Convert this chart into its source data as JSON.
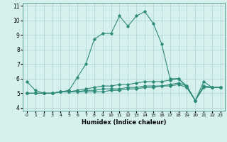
{
  "xlabel": "Humidex (Indice chaleur)",
  "x_values": [
    0,
    1,
    2,
    3,
    4,
    5,
    6,
    7,
    8,
    9,
    10,
    11,
    12,
    13,
    14,
    15,
    16,
    17,
    18,
    19,
    20,
    21,
    22,
    23
  ],
  "series1": [
    5.8,
    5.2,
    5.0,
    5.0,
    5.1,
    5.2,
    6.1,
    7.0,
    8.7,
    9.1,
    9.1,
    10.3,
    9.6,
    10.3,
    10.6,
    9.8,
    8.4,
    6.0,
    6.0,
    5.4,
    4.5,
    5.8,
    5.4,
    5.4
  ],
  "series2": [
    5.0,
    5.0,
    5.0,
    5.0,
    5.1,
    5.1,
    5.1,
    5.1,
    5.1,
    5.1,
    5.2,
    5.2,
    5.3,
    5.3,
    5.4,
    5.4,
    5.5,
    5.5,
    5.6,
    5.4,
    4.5,
    5.4,
    5.4,
    5.4
  ],
  "series3": [
    5.0,
    5.0,
    5.0,
    5.0,
    5.1,
    5.1,
    5.1,
    5.2,
    5.2,
    5.3,
    5.3,
    5.3,
    5.4,
    5.4,
    5.5,
    5.5,
    5.5,
    5.6,
    5.7,
    5.5,
    4.5,
    5.5,
    5.4,
    5.4
  ],
  "series4": [
    5.0,
    5.0,
    5.0,
    5.0,
    5.1,
    5.1,
    5.2,
    5.3,
    5.4,
    5.5,
    5.5,
    5.6,
    5.6,
    5.7,
    5.8,
    5.8,
    5.8,
    5.9,
    6.0,
    5.5,
    4.5,
    5.5,
    5.4,
    5.4
  ],
  "line_color": "#2e8b7a",
  "bg_color": "#d6f0ee",
  "grid_color": "#b0d8d4",
  "ylim": [
    3.8,
    11.2
  ],
  "yticks": [
    4,
    5,
    6,
    7,
    8,
    9,
    10,
    11
  ],
  "xlim": [
    -0.5,
    23.5
  ]
}
